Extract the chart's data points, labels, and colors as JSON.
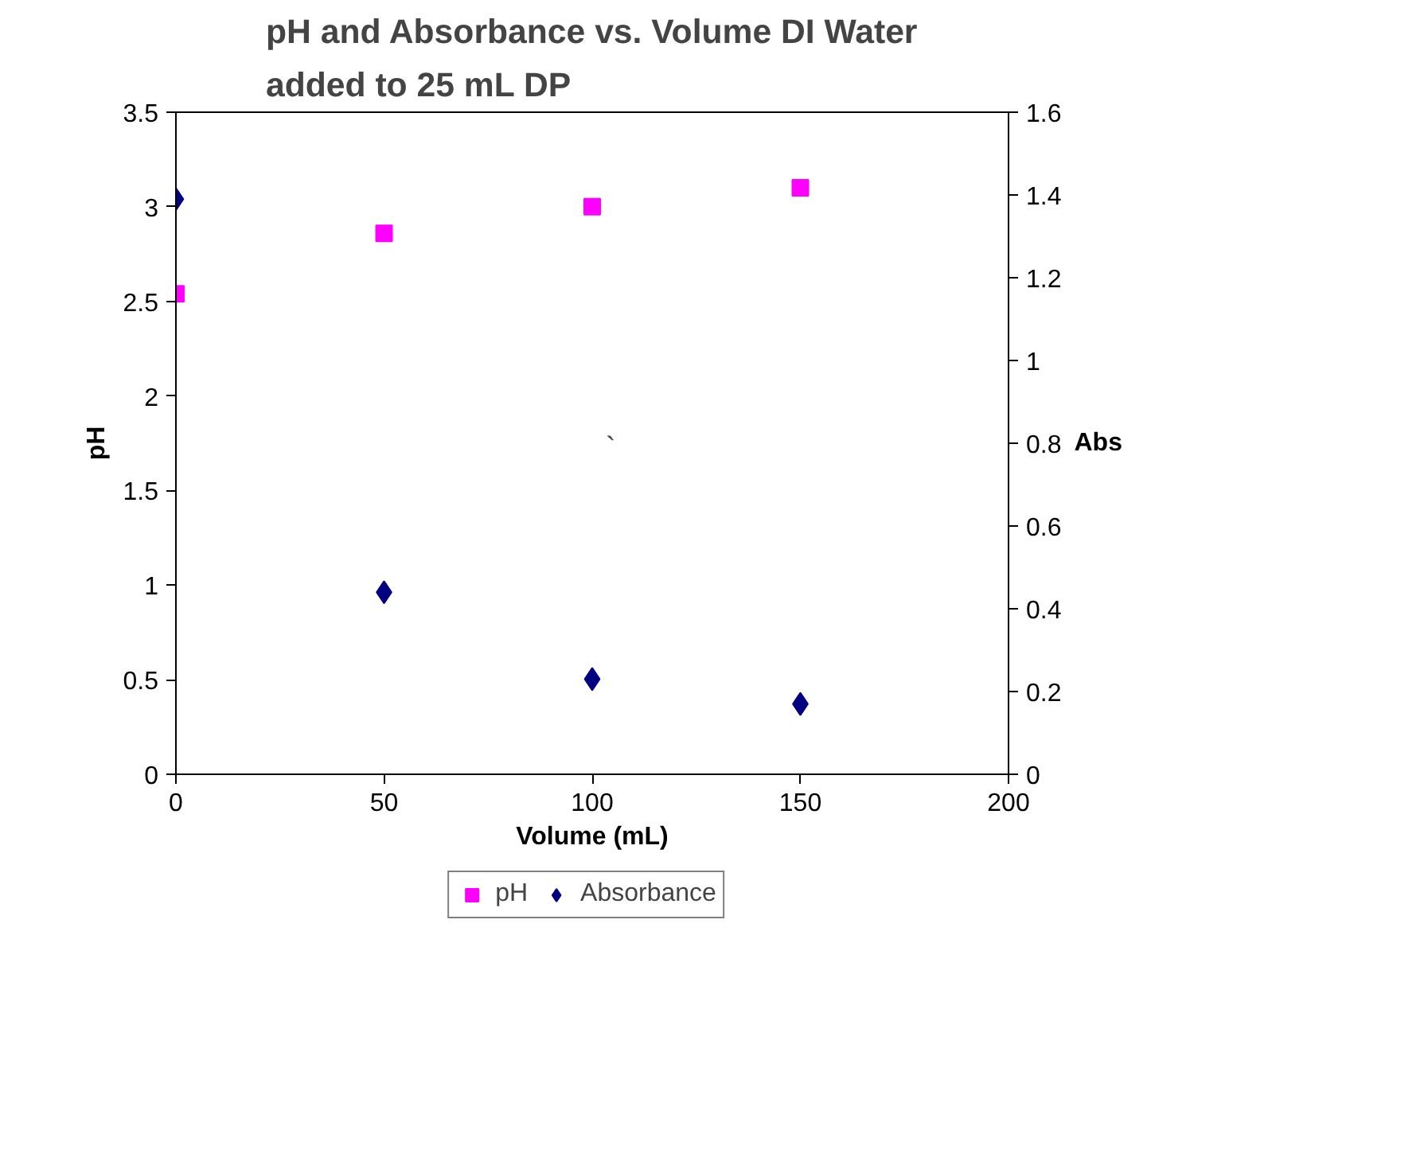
{
  "chart_data": {
    "type": "scatter",
    "title": "pH and Absorbance vs. Volume DI Water\nadded to 25 mL DP",
    "xlabel": "Volume (mL)",
    "ylabel": "pH",
    "y2label": "Abs",
    "x": [
      0,
      50,
      100,
      150
    ],
    "series": [
      {
        "name": "pH",
        "color": "#ff00ff",
        "marker": "square",
        "values": [
          2.54,
          2.86,
          3.0,
          3.1
        ]
      },
      {
        "name": "Absorbance",
        "color": "#000080",
        "marker": "diamond",
        "axis": "y2",
        "values": [
          1.39,
          0.44,
          0.23,
          0.17
        ]
      }
    ],
    "xlim": [
      0,
      200
    ],
    "xticks": [
      0,
      50,
      100,
      150,
      200
    ],
    "ylim": [
      0,
      3.5
    ],
    "yticks": [
      0,
      0.5,
      1,
      1.5,
      2,
      2.5,
      3,
      3.5
    ],
    "y2lim": [
      0,
      1.6
    ],
    "y2ticks": [
      0,
      0.2,
      0.4,
      0.6,
      0.8,
      1,
      1.2,
      1.4,
      1.6
    ],
    "annotations": [
      "`"
    ],
    "grid": false,
    "legend": "bottom"
  }
}
